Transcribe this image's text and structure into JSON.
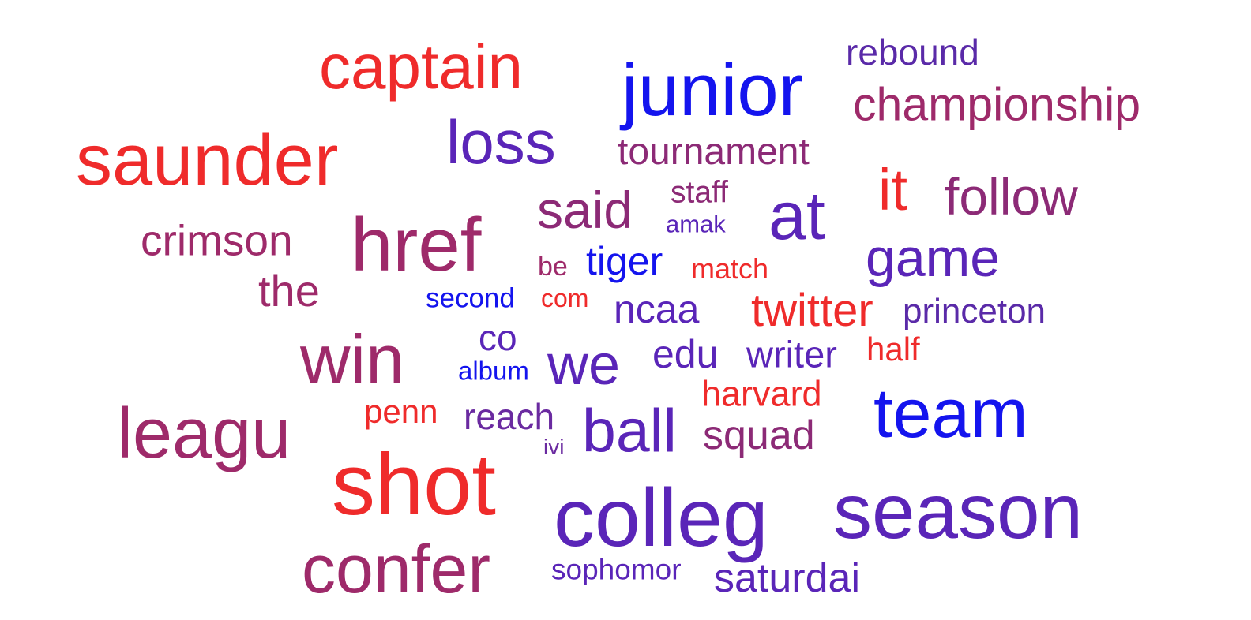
{
  "words": [
    {
      "text": "captain",
      "color": "#ef2b2b"
    },
    {
      "text": "junior",
      "color": "#1414ee"
    },
    {
      "text": "rebound",
      "color": "#5a2aa8"
    },
    {
      "text": "championship",
      "color": "#9e2a6a"
    },
    {
      "text": "saunder",
      "color": "#ef2b2b"
    },
    {
      "text": "loss",
      "color": "#5a25b8"
    },
    {
      "text": "tournament",
      "color": "#8c2a76"
    },
    {
      "text": "staff",
      "color": "#8c2a76"
    },
    {
      "text": "it",
      "color": "#ef2b2b"
    },
    {
      "text": "follow",
      "color": "#8c2a76"
    },
    {
      "text": "said",
      "color": "#8c2a76"
    },
    {
      "text": "amak",
      "color": "#5a25b8"
    },
    {
      "text": "at",
      "color": "#5a25b8"
    },
    {
      "text": "crimson",
      "color": "#9e2a6a"
    },
    {
      "text": "href",
      "color": "#9e2a6a"
    },
    {
      "text": "be",
      "color": "#9e2a6a"
    },
    {
      "text": "tiger",
      "color": "#1414ee"
    },
    {
      "text": "match",
      "color": "#ef2b2b"
    },
    {
      "text": "game",
      "color": "#5a25b8"
    },
    {
      "text": "the",
      "color": "#9e2a6a"
    },
    {
      "text": "second",
      "color": "#1414ee"
    },
    {
      "text": "com",
      "color": "#ef2b2b"
    },
    {
      "text": "ncaa",
      "color": "#5a25b8"
    },
    {
      "text": "twitter",
      "color": "#ef2b2b"
    },
    {
      "text": "princeton",
      "color": "#5a2aa8"
    },
    {
      "text": "co",
      "color": "#5a25b8"
    },
    {
      "text": "win",
      "color": "#9e2a6a"
    },
    {
      "text": "album",
      "color": "#1414ee"
    },
    {
      "text": "we",
      "color": "#5a25b8"
    },
    {
      "text": "edu",
      "color": "#5a25b8"
    },
    {
      "text": "writer",
      "color": "#5a25b8"
    },
    {
      "text": "half",
      "color": "#ef2b2b"
    },
    {
      "text": "harvard",
      "color": "#ef2b2b"
    },
    {
      "text": "leagu",
      "color": "#9e2a6a"
    },
    {
      "text": "penn",
      "color": "#ef2b2b"
    },
    {
      "text": "reach",
      "color": "#6a2aa0"
    },
    {
      "text": "ball",
      "color": "#5a25b8"
    },
    {
      "text": "squad",
      "color": "#8c2a76"
    },
    {
      "text": "team",
      "color": "#1414ee"
    },
    {
      "text": "ivi",
      "color": "#6a2aa0"
    },
    {
      "text": "shot",
      "color": "#ef2b2b"
    },
    {
      "text": "colleg",
      "color": "#5a25b8"
    },
    {
      "text": "season",
      "color": "#5a25b8"
    },
    {
      "text": "confer",
      "color": "#9e2a6a"
    },
    {
      "text": "sophomor",
      "color": "#5a25b8"
    },
    {
      "text": "saturdai",
      "color": "#5a25b8"
    }
  ]
}
